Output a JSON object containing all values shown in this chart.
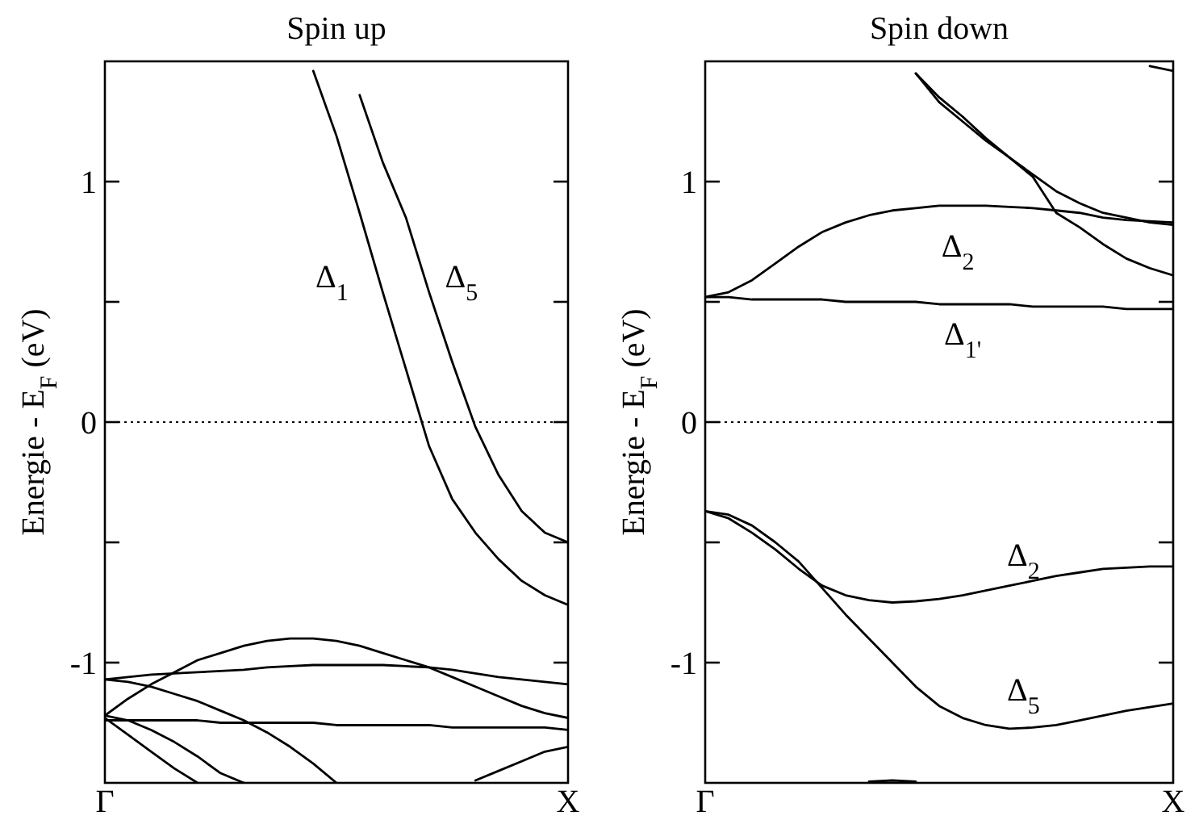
{
  "chart_data": [
    {
      "type": "line",
      "title": "Spin up",
      "ylabel": "Energie - E$_{F}$ (eV)",
      "categories": [
        "Γ",
        null,
        null,
        null,
        null,
        null,
        null,
        null,
        null,
        null,
        null,
        null,
        null,
        null,
        null,
        null,
        null,
        null,
        null,
        null,
        "X"
      ],
      "ylim": [
        -1.5,
        1.5
      ],
      "yticks": [
        {
          "value": -1,
          "label": "-1"
        },
        {
          "value": -0.5,
          "label": null
        },
        {
          "value": 0,
          "label": "0"
        },
        {
          "value": 0.5,
          "label": null
        },
        1
      ],
      "grid": false,
      "line_style": "solid",
      "marker": "none",
      "ref_lines": [
        {
          "axis": "y",
          "value": 0,
          "line_style": "dotted",
          "color": "#000000"
        }
      ],
      "annotations": [
        "Δ$_{1}$",
        "Δ$_{5}$"
      ],
      "series": [
        {
          "color": "#000000",
          "values": [
            null,
            null,
            null,
            null,
            null,
            null,
            null,
            null,
            null,
            1.46,
            1.19,
            0.87,
            0.54,
            0.22,
            -0.1,
            -0.32,
            -0.46,
            -0.57,
            -0.66,
            -0.72,
            -0.76
          ]
        },
        {
          "color": "#000000",
          "values": [
            null,
            null,
            null,
            null,
            null,
            null,
            null,
            null,
            null,
            null,
            null,
            1.36,
            1.08,
            0.85,
            0.54,
            0.25,
            -0.02,
            -0.22,
            -0.37,
            -0.46,
            -0.5
          ]
        },
        {
          "color": "#000000",
          "values": [
            -1.22,
            -1.15,
            -1.09,
            -1.04,
            -0.99,
            -0.96,
            -0.93,
            -0.91,
            -0.9,
            -0.9,
            -0.91,
            -0.93,
            -0.96,
            -0.99,
            -1.02,
            -1.06,
            -1.1,
            -1.14,
            -1.18,
            -1.21,
            -1.23
          ]
        },
        {
          "color": "#000000",
          "values": [
            -1.07,
            -1.06,
            -1.05,
            -1.045,
            -1.04,
            -1.035,
            -1.03,
            -1.02,
            -1.015,
            -1.01,
            -1.01,
            -1.01,
            -1.01,
            -1.015,
            -1.02,
            -1.03,
            -1.045,
            -1.06,
            -1.07,
            -1.08,
            -1.09
          ]
        },
        {
          "color": "#000000",
          "values": [
            -1.07,
            -1.08,
            -1.1,
            -1.13,
            -1.16,
            -1.2,
            -1.24,
            -1.29,
            -1.35,
            -1.42,
            -1.5,
            null,
            null,
            null,
            null,
            null,
            null,
            null,
            null,
            null,
            null
          ]
        },
        {
          "color": "#000000",
          "values": [
            -1.24,
            -1.24,
            -1.24,
            -1.24,
            -1.24,
            -1.25,
            -1.25,
            -1.25,
            -1.25,
            -1.25,
            -1.26,
            -1.26,
            -1.26,
            -1.26,
            -1.26,
            -1.27,
            -1.27,
            -1.27,
            -1.27,
            -1.27,
            -1.28
          ]
        },
        {
          "color": "#000000",
          "values": [
            -1.22,
            -1.24,
            -1.28,
            -1.33,
            -1.39,
            -1.46,
            -1.5,
            null,
            null,
            null,
            null,
            null,
            null,
            null,
            null,
            null,
            null,
            null,
            null,
            null,
            null
          ]
        },
        {
          "color": "#000000",
          "values": [
            -1.23,
            -1.3,
            -1.37,
            -1.44,
            -1.5,
            null,
            null,
            null,
            null,
            null,
            null,
            null,
            null,
            null,
            null,
            null,
            null,
            null,
            null,
            null,
            null
          ]
        },
        {
          "color": "#000000",
          "values": [
            null,
            null,
            null,
            null,
            null,
            null,
            null,
            null,
            null,
            null,
            null,
            null,
            null,
            null,
            null,
            null,
            -1.49,
            -1.45,
            -1.41,
            -1.37,
            -1.35
          ]
        }
      ]
    },
    {
      "type": "line",
      "title": "Spin down",
      "ylabel": "Energie - E$_{F}$ (eV)",
      "categories": [
        "Γ",
        null,
        null,
        null,
        null,
        null,
        null,
        null,
        null,
        null,
        null,
        null,
        null,
        null,
        null,
        null,
        null,
        null,
        null,
        null,
        "X"
      ],
      "ylim": [
        -1.5,
        1.5
      ],
      "yticks": [
        {
          "value": -1,
          "label": "-1"
        },
        {
          "value": -0.5,
          "label": null
        },
        {
          "value": 0,
          "label": "0"
        },
        {
          "value": 0.5,
          "label": null
        },
        1
      ],
      "grid": false,
      "line_style": "solid",
      "marker": "none",
      "ref_lines": [
        {
          "axis": "y",
          "value": 0,
          "line_style": "dotted",
          "color": "#000000"
        }
      ],
      "annotations": [
        "Δ$_{2}$",
        "Δ$_{1'}$",
        "Δ$_{2}$",
        "Δ$_{5}$"
      ],
      "series": [
        {
          "color": "#000000",
          "values": [
            0.52,
            0.54,
            0.59,
            0.66,
            0.73,
            0.79,
            0.83,
            0.86,
            0.88,
            0.89,
            0.9,
            0.9,
            0.9,
            0.895,
            0.89,
            0.88,
            0.87,
            0.85,
            0.84,
            0.835,
            0.83
          ]
        },
        {
          "color": "#000000",
          "values": [
            0.52,
            0.52,
            0.51,
            0.51,
            0.51,
            0.51,
            0.5,
            0.5,
            0.5,
            0.5,
            0.49,
            0.49,
            0.49,
            0.49,
            0.48,
            0.48,
            0.48,
            0.48,
            0.47,
            0.47,
            0.47
          ]
        },
        {
          "color": "#000000",
          "values": [
            null,
            null,
            null,
            null,
            null,
            null,
            null,
            null,
            null,
            1.45,
            1.33,
            1.25,
            1.17,
            1.1,
            1.02,
            0.87,
            0.81,
            0.74,
            0.68,
            0.64,
            0.61
          ]
        },
        {
          "color": "#000000",
          "values": [
            null,
            null,
            null,
            null,
            null,
            null,
            null,
            null,
            null,
            1.45,
            1.35,
            1.27,
            1.18,
            1.1,
            1.03,
            0.96,
            0.91,
            0.87,
            0.85,
            0.83,
            0.82
          ]
        },
        {
          "color": "#000000",
          "values": [
            null,
            null,
            null,
            null,
            null,
            null,
            null,
            null,
            null,
            null,
            null,
            null,
            null,
            null,
            null,
            null,
            null,
            null,
            null,
            1.48,
            1.46
          ]
        },
        {
          "color": "#000000",
          "values": [
            -0.37,
            -0.4,
            -0.46,
            -0.53,
            -0.61,
            -0.68,
            -0.72,
            -0.74,
            -0.75,
            -0.745,
            -0.735,
            -0.72,
            -0.7,
            -0.68,
            -0.66,
            -0.64,
            -0.625,
            -0.61,
            -0.605,
            -0.6,
            -0.6
          ]
        },
        {
          "color": "#000000",
          "values": [
            -0.37,
            -0.385,
            -0.43,
            -0.5,
            -0.58,
            -0.69,
            -0.8,
            -0.9,
            -1.0,
            -1.1,
            -1.18,
            -1.23,
            -1.26,
            -1.275,
            -1.27,
            -1.26,
            -1.24,
            -1.22,
            -1.2,
            -1.185,
            -1.17
          ]
        },
        {
          "color": "#000000",
          "values": [
            null,
            null,
            null,
            null,
            null,
            null,
            null,
            -1.495,
            -1.49,
            -1.495,
            null,
            null,
            null,
            null,
            null,
            null,
            null,
            null,
            null,
            null,
            null
          ]
        }
      ]
    }
  ]
}
